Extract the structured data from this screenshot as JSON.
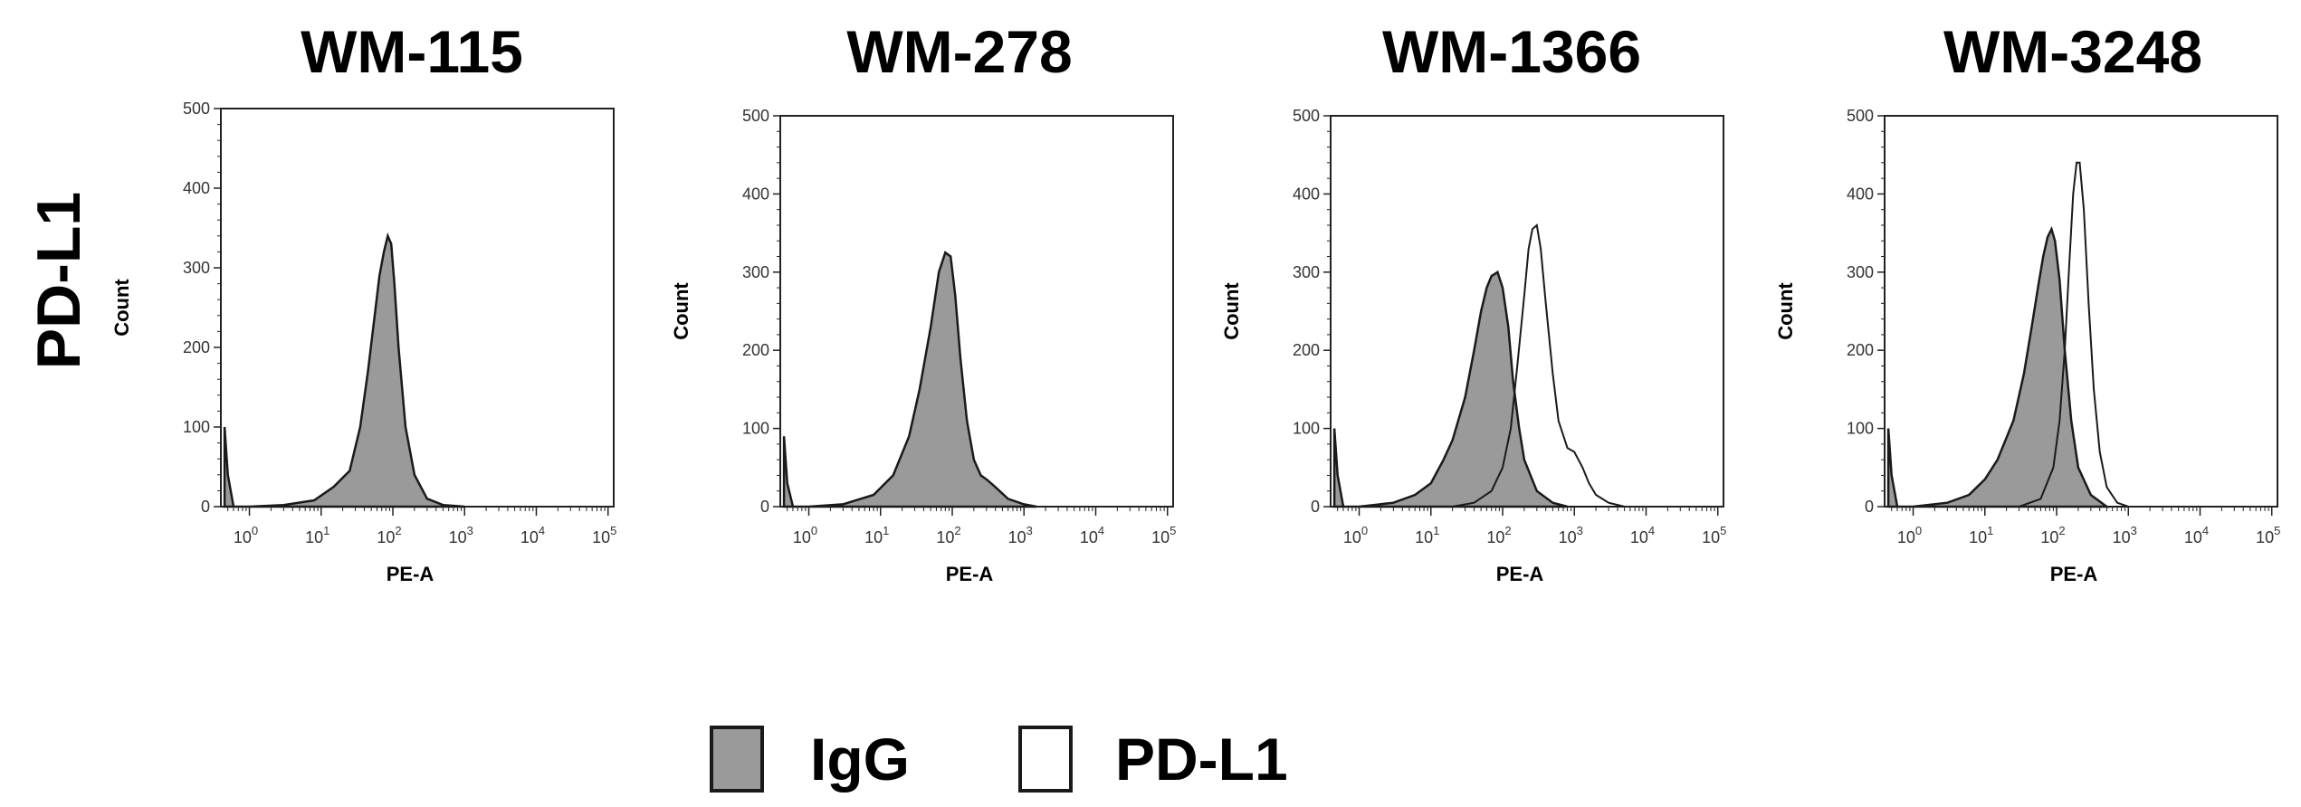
{
  "figure": {
    "row_label": "PD-L1",
    "legend": [
      {
        "label": "IgG",
        "fill": "#9a9a9a"
      },
      {
        "label": "PD-L1",
        "fill": "#ffffff"
      }
    ]
  },
  "colors": {
    "igg_fill": "#9a9a9a",
    "outline": "#1a1a1a",
    "pdl1_fill": "#ffffff"
  },
  "chart_data": [
    {
      "type": "area",
      "title": "WM-115",
      "xlabel": "PE-A",
      "ylabel": "Count",
      "xscale": "log",
      "xlim": [
        0.4,
        120000
      ],
      "ylim": [
        0,
        500
      ],
      "yticks": [
        0,
        100,
        200,
        300,
        400,
        500
      ],
      "xticks": [
        {
          "base": "10",
          "exp": "0",
          "value": 1
        },
        {
          "base": "10",
          "exp": "1",
          "value": 10
        },
        {
          "base": "10",
          "exp": "2",
          "value": 100
        },
        {
          "base": "10",
          "exp": "3",
          "value": 1000
        },
        {
          "base": "10",
          "exp": "4",
          "value": 10000
        },
        {
          "base": "10",
          "exp": "5",
          "value": 100000
        }
      ],
      "series": [
        {
          "name": "IgG",
          "x": [
            0.45,
            0.5,
            0.6,
            1,
            3,
            8,
            15,
            25,
            35,
            45,
            55,
            65,
            75,
            85,
            95,
            105,
            120,
            150,
            200,
            300,
            500,
            1000
          ],
          "y": [
            100,
            40,
            0,
            0,
            2,
            8,
            25,
            45,
            100,
            170,
            235,
            290,
            320,
            340,
            330,
            280,
            200,
            100,
            40,
            10,
            2,
            0
          ]
        }
      ]
    },
    {
      "type": "area",
      "title": "WM-278",
      "xlabel": "PE-A",
      "ylabel": "Count",
      "xscale": "log",
      "xlim": [
        0.4,
        120000
      ],
      "ylim": [
        0,
        500
      ],
      "yticks": [
        0,
        100,
        200,
        300,
        400,
        500
      ],
      "xticks": [
        {
          "base": "10",
          "exp": "0",
          "value": 1
        },
        {
          "base": "10",
          "exp": "1",
          "value": 10
        },
        {
          "base": "10",
          "exp": "2",
          "value": 100
        },
        {
          "base": "10",
          "exp": "3",
          "value": 1000
        },
        {
          "base": "10",
          "exp": "4",
          "value": 10000
        },
        {
          "base": "10",
          "exp": "5",
          "value": 100000
        }
      ],
      "series": [
        {
          "name": "IgG",
          "x": [
            0.45,
            0.5,
            0.6,
            1,
            3,
            8,
            15,
            25,
            35,
            50,
            65,
            80,
            95,
            110,
            130,
            160,
            200,
            250,
            300,
            400,
            600,
            1000,
            1500
          ],
          "y": [
            90,
            30,
            0,
            0,
            3,
            15,
            40,
            90,
            150,
            230,
            300,
            325,
            320,
            270,
            190,
            110,
            60,
            40,
            35,
            25,
            10,
            3,
            0
          ]
        }
      ]
    },
    {
      "type": "area",
      "title": "WM-1366",
      "xlabel": "PE-A",
      "ylabel": "Count",
      "xscale": "log",
      "xlim": [
        0.4,
        120000
      ],
      "ylim": [
        0,
        500
      ],
      "yticks": [
        0,
        100,
        200,
        300,
        400,
        500
      ],
      "xticks": [
        {
          "base": "10",
          "exp": "0",
          "value": 1
        },
        {
          "base": "10",
          "exp": "1",
          "value": 10
        },
        {
          "base": "10",
          "exp": "2",
          "value": 100
        },
        {
          "base": "10",
          "exp": "3",
          "value": 1000
        },
        {
          "base": "10",
          "exp": "4",
          "value": 10000
        },
        {
          "base": "10",
          "exp": "5",
          "value": 100000
        }
      ],
      "series": [
        {
          "name": "IgG",
          "x": [
            0.45,
            0.5,
            0.6,
            1,
            3,
            6,
            10,
            15,
            20,
            30,
            40,
            50,
            60,
            70,
            85,
            100,
            120,
            140,
            170,
            200,
            300,
            500,
            800
          ],
          "y": [
            100,
            40,
            0,
            0,
            5,
            15,
            30,
            60,
            85,
            140,
            200,
            250,
            280,
            295,
            300,
            280,
            230,
            160,
            100,
            60,
            20,
            5,
            0
          ]
        },
        {
          "name": "PD-L1",
          "x": [
            0.45,
            0.5,
            0.6,
            1,
            20,
            40,
            70,
            100,
            130,
            160,
            200,
            230,
            260,
            300,
            340,
            400,
            500,
            600,
            800,
            1000,
            1300,
            1600,
            2000,
            3000,
            5000
          ],
          "y": [
            100,
            40,
            0,
            0,
            0,
            5,
            20,
            50,
            100,
            180,
            270,
            330,
            355,
            360,
            330,
            260,
            170,
            110,
            75,
            70,
            50,
            30,
            15,
            5,
            0
          ]
        }
      ]
    },
    {
      "type": "area",
      "title": "WM-3248",
      "xlabel": "PE-A",
      "ylabel": "Count",
      "xscale": "log",
      "xlim": [
        0.4,
        120000
      ],
      "ylim": [
        0,
        500
      ],
      "yticks": [
        0,
        100,
        200,
        300,
        400,
        500
      ],
      "xticks": [
        {
          "base": "10",
          "exp": "0",
          "value": 1
        },
        {
          "base": "10",
          "exp": "1",
          "value": 10
        },
        {
          "base": "10",
          "exp": "2",
          "value": 100
        },
        {
          "base": "10",
          "exp": "3",
          "value": 1000
        },
        {
          "base": "10",
          "exp": "4",
          "value": 10000
        },
        {
          "base": "10",
          "exp": "5",
          "value": 100000
        }
      ],
      "series": [
        {
          "name": "IgG",
          "x": [
            0.45,
            0.5,
            0.6,
            1,
            3,
            6,
            10,
            15,
            25,
            35,
            45,
            55,
            65,
            75,
            85,
            95,
            110,
            130,
            160,
            200,
            300,
            500
          ],
          "y": [
            100,
            40,
            0,
            0,
            5,
            15,
            35,
            60,
            110,
            170,
            230,
            280,
            320,
            345,
            355,
            340,
            290,
            200,
            110,
            50,
            15,
            0
          ]
        },
        {
          "name": "PD-L1",
          "x": [
            0.45,
            0.5,
            0.6,
            1,
            30,
            60,
            90,
            110,
            130,
            150,
            170,
            190,
            210,
            240,
            280,
            330,
            400,
            500,
            700,
            1000
          ],
          "y": [
            100,
            40,
            0,
            0,
            0,
            10,
            50,
            110,
            200,
            310,
            400,
            440,
            440,
            380,
            260,
            150,
            70,
            25,
            5,
            0
          ]
        }
      ]
    }
  ]
}
